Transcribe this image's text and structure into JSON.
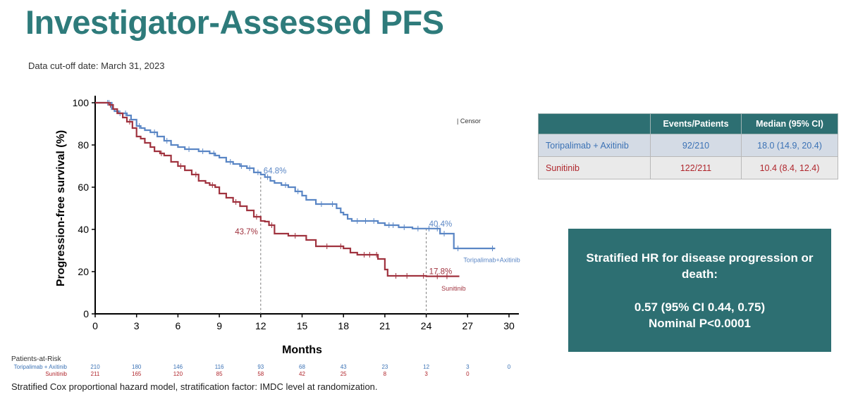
{
  "page": {
    "title": "Investigator-Assessed PFS",
    "cutoff": "Data cut-off date: March 31, 2023",
    "footnote": "Stratified Cox proportional hazard model, stratification factor: IMDC level at randomization."
  },
  "table": {
    "headers": [
      "",
      "Events/Patients",
      "Median (95% CI)"
    ],
    "rows": [
      {
        "arm": "Toripalimab + Axitinib",
        "events": "92/210",
        "median": "18.0 (14.9, 20.4)"
      },
      {
        "arm": "Sunitinib",
        "events": "122/211",
        "median": "10.4 (8.4, 12.4)"
      }
    ]
  },
  "hr_box": {
    "line1": "Stratified HR for disease progression or death:",
    "line2": "0.57 (95% CI 0.44, 0.75)",
    "line3": "Nominal P<0.0001"
  },
  "risk": {
    "title": "Patients-at-Risk",
    "rows": [
      {
        "label": "Toripalimab + Axitinib",
        "values": [
          "210",
          "180",
          "146",
          "116",
          "93",
          "68",
          "43",
          "23",
          "12",
          "3",
          "0"
        ]
      },
      {
        "label": "Sunitinib",
        "values": [
          "211",
          "165",
          "120",
          "85",
          "58",
          "42",
          "25",
          "8",
          "3",
          "0"
        ]
      }
    ]
  },
  "chart_data": {
    "type": "line",
    "xlabel": "Months",
    "ylabel": "Progression-free survival (%)",
    "xlim": [
      0,
      30
    ],
    "ylim": [
      0,
      100
    ],
    "xticks": [
      "0",
      "3",
      "6",
      "9",
      "12",
      "15",
      "18",
      "21",
      "24",
      "27",
      "30"
    ],
    "yticks": [
      "0",
      "20",
      "40",
      "60",
      "80",
      "100"
    ],
    "censor_legend": "| Censor",
    "colors": {
      "toripalimab": "#5a86c5",
      "sunitinib": "#a0333f"
    },
    "reference_lines_x": [
      12,
      24
    ],
    "series": [
      {
        "name": "Toripalimab+Axitinib",
        "color": "#5a86c5",
        "x": [
          0,
          0.6,
          1.2,
          1.4,
          1.7,
          2.0,
          2.3,
          2.6,
          3.0,
          3.3,
          3.6,
          4.0,
          4.5,
          5.0,
          5.5,
          6.0,
          6.5,
          7.0,
          7.5,
          8.0,
          8.3,
          8.7,
          9.0,
          9.5,
          10.0,
          10.5,
          11.0,
          11.5,
          12.0,
          12.3,
          12.7,
          13.0,
          13.5,
          14.0,
          14.5,
          15.0,
          15.3,
          16.0,
          17.0,
          17.5,
          17.8,
          18.0,
          18.3,
          18.6,
          19.0,
          20.0,
          20.5,
          21.0,
          22.0,
          23.0,
          24.0,
          24.5,
          25.0,
          25.5,
          26.0,
          29.0
        ],
        "y": [
          100,
          100,
          97,
          96,
          95,
          95,
          94,
          92,
          89,
          88,
          87,
          86,
          84,
          82,
          80,
          79,
          78,
          78,
          77,
          77,
          76,
          75,
          74,
          72,
          71,
          70,
          69,
          67,
          66,
          64.8,
          63,
          62,
          61,
          60,
          58,
          56,
          54,
          52,
          52,
          50,
          48,
          47,
          45,
          44,
          44,
          44,
          43,
          42,
          41,
          40.4,
          40.4,
          40.4,
          38,
          38,
          31,
          31
        ],
        "censors": [
          0.9,
          1.0,
          1.8,
          2.2,
          3.2,
          4.3,
          5.2,
          6.8,
          7.8,
          8.6,
          9.8,
          10.6,
          11.2,
          11.8,
          12.5,
          13.8,
          14.7,
          16.4,
          17.2,
          19.0,
          19.6,
          20.2,
          21.3,
          21.6,
          22.4,
          23.4,
          24.2,
          24.8,
          25.3,
          26.3,
          28.8
        ]
      },
      {
        "name": "Sunitinib",
        "color": "#a0333f",
        "x": [
          0,
          0.6,
          1.0,
          1.3,
          1.6,
          2.0,
          2.3,
          2.7,
          3.0,
          3.3,
          3.6,
          4.0,
          4.3,
          4.7,
          5.0,
          5.5,
          6.0,
          6.5,
          7.0,
          7.5,
          8.0,
          8.3,
          8.7,
          9.0,
          9.5,
          10.0,
          10.5,
          11.0,
          11.5,
          12.0,
          12.3,
          12.6,
          13.0,
          14.0,
          15.0,
          15.3,
          16.0,
          17.0,
          17.5,
          18.0,
          18.5,
          19.0,
          20.0,
          20.5,
          21.0,
          21.2,
          22.0,
          24.0,
          25.0,
          26.4
        ],
        "y": [
          100,
          100,
          99,
          97,
          95,
          93,
          91,
          88,
          84,
          83,
          81,
          79,
          77,
          76,
          75,
          72,
          70,
          68,
          66,
          63,
          62,
          61,
          60,
          57,
          55,
          53,
          51,
          49,
          46,
          44,
          43.7,
          42,
          38,
          37,
          37,
          35,
          32,
          32,
          32,
          31,
          29,
          28,
          28,
          26,
          21,
          18,
          18,
          17.8,
          17.8,
          17.8
        ],
        "censors": [
          1.1,
          2.5,
          4.8,
          6.2,
          7.3,
          8.5,
          10.2,
          11.7,
          12.8,
          14.5,
          16.8,
          17.8,
          19.5,
          19.9,
          20.4,
          21.8,
          22.6,
          23.8,
          24.8,
          25.5
        ]
      }
    ],
    "annotations": [
      {
        "text": "64.8%",
        "x": 12,
        "y": 64.8,
        "color": "#5a86c5"
      },
      {
        "text": "43.7%",
        "x": 12,
        "y": 43.7,
        "color": "#a0333f"
      },
      {
        "text": "40.4%",
        "x": 24,
        "y": 40.4,
        "color": "#5a86c5"
      },
      {
        "text": "17.8%",
        "x": 24,
        "y": 17.8,
        "color": "#a0333f"
      }
    ]
  }
}
